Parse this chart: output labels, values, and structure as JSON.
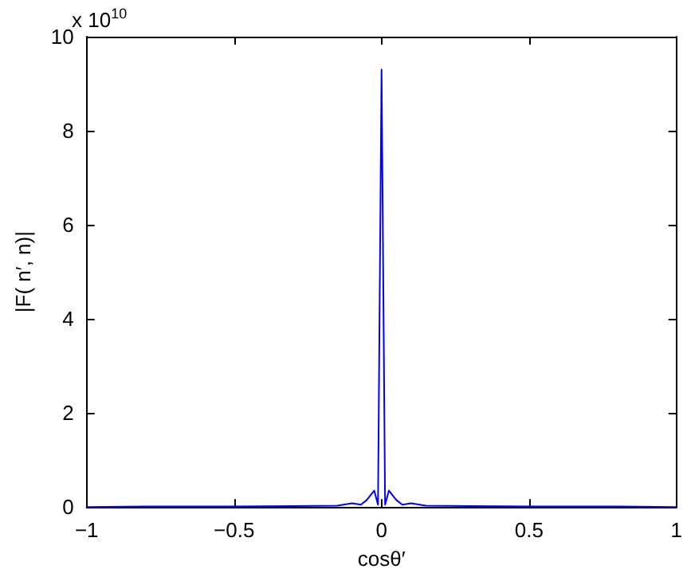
{
  "chart_data": {
    "type": "line",
    "xlabel": "cosθ′",
    "ylabel": "|F( n′, n)|",
    "annotations": [
      "x 10$^{10}$"
    ],
    "x": [
      -1,
      -0.8,
      -0.5,
      -0.3,
      -0.15,
      -0.1,
      -0.07,
      -0.05,
      -0.025,
      -0.012,
      0,
      0.012,
      0.025,
      0.05,
      0.07,
      0.1,
      0.15,
      0.3,
      0.5,
      0.8,
      1
    ],
    "series": [
      {
        "color": "#0000ff",
        "values": [
          0,
          0.01,
          0.01,
          0.02,
          0.03,
          0.08,
          0.05,
          0.15,
          0.35,
          0.05,
          9.3,
          0.05,
          0.35,
          0.15,
          0.05,
          0.08,
          0.03,
          0.02,
          0.01,
          0.01,
          0
        ]
      }
    ],
    "xlim": [
      -1,
      1
    ],
    "xticks": [
      -1,
      -0.5,
      0,
      0.5,
      1
    ],
    "ylim": [
      0,
      10
    ],
    "yticks": [
      0,
      2,
      4,
      6,
      8,
      10
    ],
    "grid": false,
    "marker": "none",
    "line_style": "solid"
  }
}
